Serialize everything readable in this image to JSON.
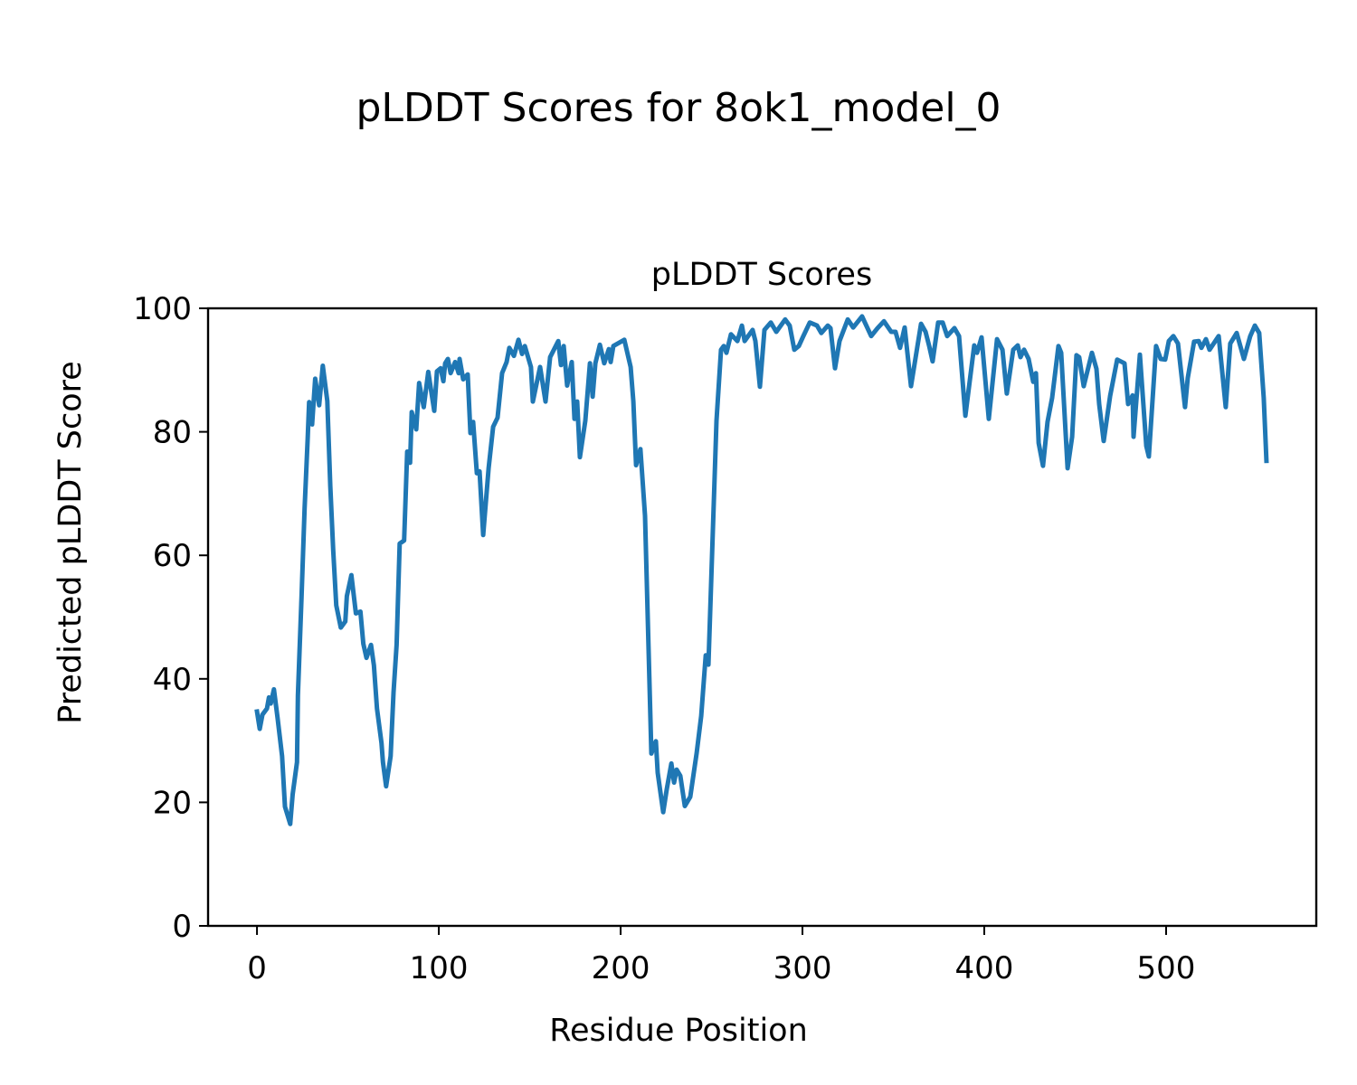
{
  "chart_data": {
    "type": "line",
    "suptitle": "pLDDT Scores for 8ok1_model_0",
    "title": "pLDDT Scores",
    "xlabel": "Residue Position",
    "ylabel": "Predicted pLDDT Score",
    "xlim": [
      -26.9,
      582.6
    ],
    "ylim": [
      0,
      100
    ],
    "xticks": [
      0,
      100,
      200,
      300,
      400,
      500
    ],
    "yticks": [
      0,
      20,
      40,
      60,
      80,
      100
    ],
    "grid": false,
    "legend": "none",
    "line_color": "#1f77b4",
    "series": [
      {
        "name": "pLDDT",
        "points": [
          [
            0,
            34.7
          ],
          [
            1.5,
            31.9
          ],
          [
            3,
            34.2
          ],
          [
            5.5,
            35.2
          ],
          [
            6.6,
            37.0
          ],
          [
            7.6,
            36.0
          ],
          [
            9.3,
            38.3
          ],
          [
            11.3,
            33.7
          ],
          [
            13.8,
            27.5
          ],
          [
            15.4,
            19.3
          ],
          [
            18.3,
            16.5
          ],
          [
            19.6,
            21.3
          ],
          [
            22,
            26.5
          ],
          [
            22.5,
            37.3
          ],
          [
            24.5,
            53.2
          ],
          [
            26.2,
            67.6
          ],
          [
            27.9,
            78.9
          ],
          [
            28.7,
            84.8
          ],
          [
            30.3,
            81.2
          ],
          [
            32,
            88.6
          ],
          [
            34.2,
            84.3
          ],
          [
            36.2,
            90.7
          ],
          [
            38.7,
            85.0
          ],
          [
            40.3,
            71.2
          ],
          [
            41.9,
            60.9
          ],
          [
            43.6,
            51.9
          ],
          [
            46.1,
            48.3
          ],
          [
            48.6,
            49.3
          ],
          [
            49.4,
            53.4
          ],
          [
            51.9,
            56.8
          ],
          [
            54.4,
            50.6
          ],
          [
            56.9,
            50.9
          ],
          [
            58.5,
            45.7
          ],
          [
            60.2,
            43.4
          ],
          [
            62.7,
            45.5
          ],
          [
            64.3,
            42.2
          ],
          [
            66,
            35.2
          ],
          [
            68.5,
            29.6
          ],
          [
            69.3,
            26.5
          ],
          [
            71,
            22.6
          ],
          [
            73.5,
            27.5
          ],
          [
            75.1,
            37.8
          ],
          [
            76.8,
            45.5
          ],
          [
            78.5,
            61.9
          ],
          [
            80.9,
            62.4
          ],
          [
            82.6,
            76.8
          ],
          [
            84.2,
            75.0
          ],
          [
            85.1,
            83.2
          ],
          [
            87.6,
            80.4
          ],
          [
            89.2,
            87.9
          ],
          [
            91.7,
            84.0
          ],
          [
            94.2,
            89.7
          ],
          [
            97.5,
            83.4
          ],
          [
            99,
            89.8
          ],
          [
            101,
            90.3
          ],
          [
            102.5,
            88.2
          ],
          [
            103.5,
            91.1
          ],
          [
            105,
            91.8
          ],
          [
            106.5,
            89.5
          ],
          [
            109,
            91.3
          ],
          [
            110.9,
            89.5
          ],
          [
            111.4,
            91.8
          ],
          [
            113.4,
            88.5
          ],
          [
            115.9,
            89.3
          ],
          [
            117.4,
            79.8
          ],
          [
            118.9,
            81.6
          ],
          [
            120.9,
            73.3
          ],
          [
            122.4,
            73.6
          ],
          [
            124.4,
            63.3
          ],
          [
            127.4,
            74.1
          ],
          [
            129.9,
            80.8
          ],
          [
            132.3,
            82.3
          ],
          [
            134.8,
            89.5
          ],
          [
            137.3,
            91.3
          ],
          [
            138.8,
            93.6
          ],
          [
            141.3,
            92.3
          ],
          [
            143.8,
            94.9
          ],
          [
            145.8,
            92.6
          ],
          [
            147.3,
            93.9
          ],
          [
            150.7,
            90.5
          ],
          [
            151.7,
            84.9
          ],
          [
            155.7,
            90.5
          ],
          [
            158.7,
            84.9
          ],
          [
            161.2,
            92.1
          ],
          [
            165.7,
            94.7
          ],
          [
            167.2,
            90.8
          ],
          [
            168.7,
            93.9
          ],
          [
            170.6,
            87.5
          ],
          [
            173.1,
            91.3
          ],
          [
            174.6,
            82.1
          ],
          [
            176.1,
            84.9
          ],
          [
            177.6,
            75.9
          ],
          [
            180.6,
            81.8
          ],
          [
            183.1,
            91.1
          ],
          [
            184.6,
            85.7
          ],
          [
            186.1,
            91.1
          ],
          [
            188.6,
            94.1
          ],
          [
            191,
            91.1
          ],
          [
            193.5,
            93.4
          ],
          [
            194.5,
            91.3
          ],
          [
            196,
            93.9
          ],
          [
            202,
            94.9
          ],
          [
            205.5,
            90.5
          ],
          [
            207,
            84.9
          ],
          [
            208.5,
            74.6
          ],
          [
            210.9,
            77.2
          ],
          [
            213.4,
            66.4
          ],
          [
            216.9,
            27.9
          ],
          [
            219.4,
            29.9
          ],
          [
            220.4,
            24.8
          ],
          [
            223.4,
            18.4
          ],
          [
            225.4,
            22.2
          ],
          [
            227.9,
            26.3
          ],
          [
            229.4,
            23.2
          ],
          [
            230.8,
            25.3
          ],
          [
            232.8,
            24.3
          ],
          [
            235.3,
            19.4
          ],
          [
            238.3,
            20.9
          ],
          [
            241.8,
            27.9
          ],
          [
            244.3,
            34.0
          ],
          [
            246.8,
            43.8
          ],
          [
            248.3,
            42.3
          ],
          [
            250.2,
            59.2
          ],
          [
            252.7,
            81.8
          ],
          [
            255.2,
            93.3
          ],
          [
            256.7,
            93.9
          ],
          [
            258.2,
            92.8
          ],
          [
            260.7,
            95.8
          ],
          [
            264.2,
            94.7
          ],
          [
            266.7,
            97.2
          ],
          [
            268.2,
            94.7
          ],
          [
            272.6,
            96.5
          ],
          [
            274.1,
            94.7
          ],
          [
            276.6,
            87.3
          ],
          [
            279.1,
            96.5
          ],
          [
            282.6,
            97.7
          ],
          [
            285.6,
            96.2
          ],
          [
            290.5,
            98.2
          ],
          [
            293,
            97.2
          ],
          [
            295.5,
            93.3
          ],
          [
            298,
            93.9
          ],
          [
            300.5,
            95.5
          ],
          [
            304,
            97.7
          ],
          [
            308,
            97.2
          ],
          [
            310.4,
            96.0
          ],
          [
            313.9,
            97.2
          ],
          [
            315.4,
            96.8
          ],
          [
            317.9,
            90.3
          ],
          [
            320.4,
            94.7
          ],
          [
            324.9,
            98.2
          ],
          [
            327.9,
            96.9
          ],
          [
            332.8,
            98.7
          ],
          [
            337.8,
            95.5
          ],
          [
            341.3,
            96.8
          ],
          [
            344.8,
            97.9
          ],
          [
            348.8,
            96.2
          ],
          [
            351.2,
            96.2
          ],
          [
            353.7,
            93.6
          ],
          [
            356.2,
            96.9
          ],
          [
            359.7,
            87.4
          ],
          [
            365.2,
            97.5
          ],
          [
            367.7,
            96.2
          ],
          [
            369.7,
            93.9
          ],
          [
            371.6,
            91.4
          ],
          [
            374.6,
            97.7
          ],
          [
            377.1,
            97.7
          ],
          [
            379.6,
            95.5
          ],
          [
            383.6,
            96.8
          ],
          [
            386.1,
            95.5
          ],
          [
            389.6,
            82.6
          ],
          [
            394.5,
            94.0
          ],
          [
            396,
            92.8
          ],
          [
            398.5,
            95.3
          ],
          [
            402.5,
            82.1
          ],
          [
            407,
            95.0
          ],
          [
            410,
            93.3
          ],
          [
            412.4,
            86.2
          ],
          [
            415.9,
            93.3
          ],
          [
            418.4,
            94.0
          ],
          [
            419.9,
            92.1
          ],
          [
            421.9,
            93.3
          ],
          [
            424.4,
            91.8
          ],
          [
            426.9,
            88.1
          ],
          [
            428.4,
            89.5
          ],
          [
            429.9,
            78.2
          ],
          [
            432.3,
            74.5
          ],
          [
            434.8,
            81.6
          ],
          [
            437.3,
            85.5
          ],
          [
            440.8,
            93.9
          ],
          [
            442.3,
            92.8
          ],
          [
            445.8,
            74.1
          ],
          [
            448.3,
            79.2
          ],
          [
            450.7,
            92.4
          ],
          [
            452.2,
            92.1
          ],
          [
            454.7,
            87.4
          ],
          [
            459.2,
            92.8
          ],
          [
            461.7,
            90.2
          ],
          [
            463.2,
            84.5
          ],
          [
            465.7,
            78.5
          ],
          [
            469.2,
            85.8
          ],
          [
            473.1,
            91.7
          ],
          [
            477.1,
            91.1
          ],
          [
            479.1,
            84.5
          ],
          [
            481.6,
            85.9
          ],
          [
            482.1,
            79.2
          ],
          [
            485.6,
            92.5
          ],
          [
            489.1,
            77.7
          ],
          [
            490.5,
            76.0
          ],
          [
            494.5,
            93.9
          ],
          [
            497,
            91.8
          ],
          [
            499.5,
            91.7
          ],
          [
            501.5,
            94.7
          ],
          [
            504,
            95.5
          ],
          [
            506.5,
            94.3
          ],
          [
            510.4,
            84.0
          ],
          [
            511.9,
            88.7
          ],
          [
            515.4,
            94.6
          ],
          [
            517.9,
            94.7
          ],
          [
            519.4,
            93.6
          ],
          [
            521.9,
            95.0
          ],
          [
            523.9,
            93.3
          ],
          [
            528.9,
            95.5
          ],
          [
            532.8,
            84.0
          ],
          [
            535.3,
            94.3
          ],
          [
            538.8,
            96.0
          ],
          [
            542.8,
            91.8
          ],
          [
            546.3,
            95.5
          ],
          [
            548.8,
            97.2
          ],
          [
            551.2,
            96.0
          ],
          [
            553.7,
            85.5
          ],
          [
            555.2,
            75.3
          ]
        ]
      }
    ]
  }
}
